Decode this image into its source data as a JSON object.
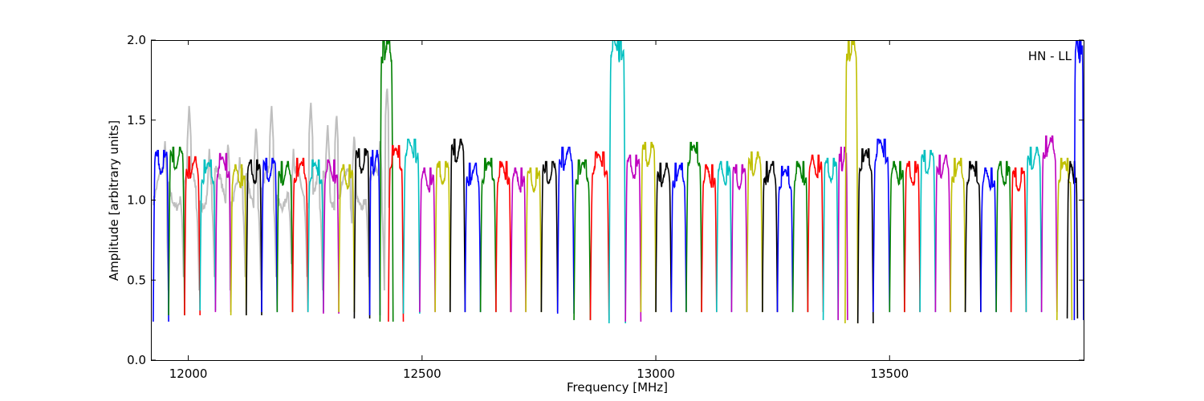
{
  "chart_data": {
    "type": "line",
    "title": "",
    "xlabel": "Frequency [MHz]",
    "ylabel": "Amplitude [arbitrary units]",
    "xlim": [
      11920,
      13915
    ],
    "ylim": [
      0,
      2.0
    ],
    "xticks": [
      12000,
      12500,
      13000,
      13500
    ],
    "yticks": [
      0.0,
      0.5,
      1.0,
      1.5,
      2.0
    ],
    "xtick_labels": [
      "12000",
      "12500",
      "13000",
      "13500"
    ],
    "ytick_labels": [
      "0.0",
      "0.5",
      "1.0",
      "1.5",
      "2.0"
    ],
    "annotation": "HN - LL",
    "annotation_position": "top-right",
    "grid": false,
    "background_series": {
      "color": "#bfbfbf",
      "x_range": [
        11925,
        12430
      ],
      "peaks": [
        {
          "x": 11950,
          "y": 1.38
        },
        {
          "x": 12002,
          "y": 1.6
        },
        {
          "x": 12045,
          "y": 1.32
        },
        {
          "x": 12085,
          "y": 1.37
        },
        {
          "x": 12110,
          "y": 1.28
        },
        {
          "x": 12145,
          "y": 1.47
        },
        {
          "x": 12178,
          "y": 1.6
        },
        {
          "x": 12225,
          "y": 1.32
        },
        {
          "x": 12262,
          "y": 1.62
        },
        {
          "x": 12298,
          "y": 1.48
        },
        {
          "x": 12317,
          "y": 1.55
        },
        {
          "x": 12355,
          "y": 1.42
        },
        {
          "x": 12410,
          "y": 1.38
        },
        {
          "x": 12425,
          "y": 1.72
        }
      ]
    },
    "channel_colors": [
      "#0000ff",
      "#008000",
      "#ff0000",
      "#00bfbf",
      "#bf00bf",
      "#bfbf00",
      "#000000"
    ],
    "series": [
      {
        "x_start": 11925,
        "x_end": 11958,
        "peak": 1.31,
        "min": 0.24,
        "color": "#0000ff"
      },
      {
        "x_start": 11958,
        "x_end": 11992,
        "peak": 1.33,
        "min": 0.28,
        "color": "#008000"
      },
      {
        "x_start": 11992,
        "x_end": 12025,
        "peak": 1.27,
        "min": 0.28,
        "color": "#ff0000"
      },
      {
        "x_start": 12025,
        "x_end": 12058,
        "peak": 1.25,
        "min": 0.31,
        "color": "#00bfbf"
      },
      {
        "x_start": 12058,
        "x_end": 12091,
        "peak": 1.29,
        "min": 0.3,
        "color": "#bf00bf"
      },
      {
        "x_start": 12091,
        "x_end": 12124,
        "peak": 1.22,
        "min": 0.28,
        "color": "#bfbf00"
      },
      {
        "x_start": 12124,
        "x_end": 12157,
        "peak": 1.25,
        "min": 0.28,
        "color": "#000000"
      },
      {
        "x_start": 12157,
        "x_end": 12190,
        "peak": 1.26,
        "min": 0.3,
        "color": "#0000ff"
      },
      {
        "x_start": 12190,
        "x_end": 12223,
        "peak": 1.24,
        "min": 0.3,
        "color": "#008000"
      },
      {
        "x_start": 12223,
        "x_end": 12256,
        "peak": 1.26,
        "min": 0.3,
        "color": "#ff0000"
      },
      {
        "x_start": 12256,
        "x_end": 12289,
        "peak": 1.25,
        "min": 0.3,
        "color": "#00bfbf"
      },
      {
        "x_start": 12289,
        "x_end": 12322,
        "peak": 1.25,
        "min": 0.29,
        "color": "#bf00bf"
      },
      {
        "x_start": 12322,
        "x_end": 12355,
        "peak": 1.22,
        "min": 0.3,
        "color": "#bfbf00"
      },
      {
        "x_start": 12355,
        "x_end": 12388,
        "peak": 1.32,
        "min": 0.26,
        "color": "#000000"
      },
      {
        "x_start": 12388,
        "x_end": 12410,
        "peak": 1.31,
        "min": 0.28,
        "color": "#0000ff"
      },
      {
        "x_start": 12410,
        "x_end": 12438,
        "peak": 2.0,
        "min": 0.24,
        "color": "#008000"
      },
      {
        "x_start": 12428,
        "x_end": 12460,
        "peak": 1.34,
        "min": 0.24,
        "color": "#ff0000"
      },
      {
        "x_start": 12460,
        "x_end": 12495,
        "peak": 1.38,
        "min": 0.29,
        "color": "#00bfbf"
      },
      {
        "x_start": 12495,
        "x_end": 12528,
        "peak": 1.2,
        "min": 0.3,
        "color": "#bf00bf"
      },
      {
        "x_start": 12528,
        "x_end": 12560,
        "peak": 1.24,
        "min": 0.3,
        "color": "#bfbf00"
      },
      {
        "x_start": 12560,
        "x_end": 12592,
        "peak": 1.38,
        "min": 0.3,
        "color": "#000000"
      },
      {
        "x_start": 12592,
        "x_end": 12625,
        "peak": 1.23,
        "min": 0.3,
        "color": "#0000ff"
      },
      {
        "x_start": 12625,
        "x_end": 12658,
        "peak": 1.26,
        "min": 0.3,
        "color": "#008000"
      },
      {
        "x_start": 12658,
        "x_end": 12690,
        "peak": 1.24,
        "min": 0.3,
        "color": "#ff0000"
      },
      {
        "x_start": 12690,
        "x_end": 12722,
        "peak": 1.2,
        "min": 0.3,
        "color": "#bf00bf"
      },
      {
        "x_start": 12722,
        "x_end": 12755,
        "peak": 1.2,
        "min": 0.3,
        "color": "#bfbf00"
      },
      {
        "x_start": 12755,
        "x_end": 12790,
        "peak": 1.24,
        "min": 0.3,
        "color": "#000000"
      },
      {
        "x_start": 12790,
        "x_end": 12825,
        "peak": 1.33,
        "min": 0.29,
        "color": "#0000ff"
      },
      {
        "x_start": 12825,
        "x_end": 12860,
        "peak": 1.25,
        "min": 0.25,
        "color": "#008000"
      },
      {
        "x_start": 12860,
        "x_end": 12900,
        "peak": 1.3,
        "min": 0.25,
        "color": "#ff0000"
      },
      {
        "x_start": 12900,
        "x_end": 12935,
        "peak": 2.0,
        "min": 0.23,
        "color": "#00bfbf"
      },
      {
        "x_start": 12935,
        "x_end": 12968,
        "peak": 1.28,
        "min": 0.24,
        "color": "#bf00bf"
      },
      {
        "x_start": 12968,
        "x_end": 13000,
        "peak": 1.36,
        "min": 0.3,
        "color": "#bfbf00"
      },
      {
        "x_start": 13000,
        "x_end": 13033,
        "peak": 1.23,
        "min": 0.3,
        "color": "#000000"
      },
      {
        "x_start": 13033,
        "x_end": 13065,
        "peak": 1.23,
        "min": 0.3,
        "color": "#0000ff"
      },
      {
        "x_start": 13065,
        "x_end": 13098,
        "peak": 1.36,
        "min": 0.3,
        "color": "#008000"
      },
      {
        "x_start": 13098,
        "x_end": 13130,
        "peak": 1.22,
        "min": 0.3,
        "color": "#ff0000"
      },
      {
        "x_start": 13130,
        "x_end": 13162,
        "peak": 1.24,
        "min": 0.3,
        "color": "#00bfbf"
      },
      {
        "x_start": 13162,
        "x_end": 13195,
        "peak": 1.22,
        "min": 0.3,
        "color": "#bf00bf"
      },
      {
        "x_start": 13195,
        "x_end": 13228,
        "peak": 1.3,
        "min": 0.3,
        "color": "#bfbf00"
      },
      {
        "x_start": 13228,
        "x_end": 13260,
        "peak": 1.24,
        "min": 0.3,
        "color": "#000000"
      },
      {
        "x_start": 13260,
        "x_end": 13293,
        "peak": 1.21,
        "min": 0.3,
        "color": "#0000ff"
      },
      {
        "x_start": 13293,
        "x_end": 13325,
        "peak": 1.24,
        "min": 0.3,
        "color": "#008000"
      },
      {
        "x_start": 13325,
        "x_end": 13358,
        "peak": 1.28,
        "min": 0.3,
        "color": "#ff0000"
      },
      {
        "x_start": 13358,
        "x_end": 13390,
        "peak": 1.26,
        "min": 0.25,
        "color": "#00bfbf"
      },
      {
        "x_start": 13390,
        "x_end": 13410,
        "peak": 1.33,
        "min": 0.25,
        "color": "#bf00bf"
      },
      {
        "x_start": 13405,
        "x_end": 13432,
        "peak": 2.0,
        "min": 0.23,
        "color": "#bfbf00"
      },
      {
        "x_start": 13432,
        "x_end": 13465,
        "peak": 1.32,
        "min": 0.23,
        "color": "#000000"
      },
      {
        "x_start": 13465,
        "x_end": 13500,
        "peak": 1.38,
        "min": 0.3,
        "color": "#0000ff"
      },
      {
        "x_start": 13500,
        "x_end": 13532,
        "peak": 1.24,
        "min": 0.3,
        "color": "#008000"
      },
      {
        "x_start": 13532,
        "x_end": 13565,
        "peak": 1.24,
        "min": 0.3,
        "color": "#ff0000"
      },
      {
        "x_start": 13565,
        "x_end": 13598,
        "peak": 1.31,
        "min": 0.3,
        "color": "#00bfbf"
      },
      {
        "x_start": 13598,
        "x_end": 13630,
        "peak": 1.28,
        "min": 0.3,
        "color": "#bf00bf"
      },
      {
        "x_start": 13630,
        "x_end": 13662,
        "peak": 1.26,
        "min": 0.3,
        "color": "#bfbf00"
      },
      {
        "x_start": 13662,
        "x_end": 13695,
        "peak": 1.24,
        "min": 0.3,
        "color": "#000000"
      },
      {
        "x_start": 13695,
        "x_end": 13728,
        "peak": 1.2,
        "min": 0.3,
        "color": "#0000ff"
      },
      {
        "x_start": 13728,
        "x_end": 13760,
        "peak": 1.24,
        "min": 0.3,
        "color": "#008000"
      },
      {
        "x_start": 13760,
        "x_end": 13792,
        "peak": 1.2,
        "min": 0.3,
        "color": "#ff0000"
      },
      {
        "x_start": 13792,
        "x_end": 13825,
        "peak": 1.33,
        "min": 0.3,
        "color": "#00bfbf"
      },
      {
        "x_start": 13825,
        "x_end": 13858,
        "peak": 1.4,
        "min": 0.3,
        "color": "#bf00bf"
      },
      {
        "x_start": 13858,
        "x_end": 13890,
        "peak": 1.26,
        "min": 0.25,
        "color": "#bfbf00"
      },
      {
        "x_start": 13880,
        "x_end": 13902,
        "peak": 1.24,
        "min": 0.26,
        "color": "#000000"
      },
      {
        "x_start": 13895,
        "x_end": 13915,
        "peak": 2.0,
        "min": 0.25,
        "color": "#0000ff"
      }
    ]
  }
}
